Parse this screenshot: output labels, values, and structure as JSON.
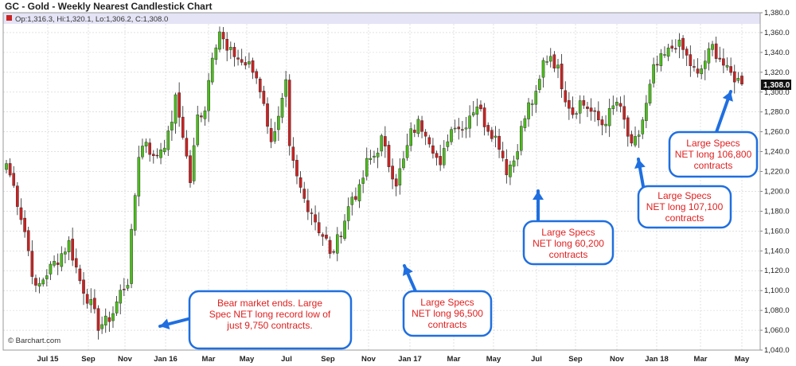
{
  "colors": {
    "up": "#4cbc1c",
    "down": "#cc2222",
    "note_border": "#1f6fe0",
    "note_text": "#e02020",
    "arrow": "#1f6fe0",
    "grid": "#cfcfcf",
    "header_band": "#e4e4f6"
  },
  "header": {
    "title": "GC - Gold - Weekly Nearest Candlestick Chart",
    "ohlc_readout": "Op:1,316.3, Hi:1,320.1, Lo:1,306.2, C:1,308.0"
  },
  "source_label": "© Barchart.com",
  "last_price_label": "1,308.0",
  "chart_data": {
    "type": "candlestick",
    "title": "GC - Gold - Weekly Nearest Candlestick Chart",
    "ylim": [
      1040,
      1380
    ],
    "y_ticks": [
      "1,040.0",
      "1,060.0",
      "1,080.0",
      "1,100.0",
      "1,120.0",
      "1,140.0",
      "1,160.0",
      "1,180.0",
      "1,200.0",
      "1,220.0",
      "1,240.0",
      "1,260.0",
      "1,280.0",
      "1,300.0",
      "1,320.0",
      "1,340.0",
      "1,360.0",
      "1,380.0"
    ],
    "x_ticks": [
      "Jul 15",
      "Sep",
      "Nov",
      "Jan 16",
      "Mar",
      "May",
      "Jul",
      "Sep",
      "Nov",
      "Jan 17",
      "Mar",
      "May",
      "Jul",
      "Sep",
      "Nov",
      "Jan 18",
      "Mar",
      "May"
    ],
    "grid": true,
    "last_close": 1308.0,
    "anchors": [
      [
        0,
        1228
      ],
      [
        2,
        1205
      ],
      [
        5,
        1160
      ],
      [
        8,
        1100
      ],
      [
        11,
        1118
      ],
      [
        14,
        1132
      ],
      [
        17,
        1148
      ],
      [
        20,
        1110
      ],
      [
        23,
        1085
      ],
      [
        25,
        1065
      ],
      [
        27,
        1068
      ],
      [
        29,
        1078
      ],
      [
        31,
        1098
      ],
      [
        33,
        1110
      ],
      [
        34,
        1155
      ],
      [
        36,
        1238
      ],
      [
        38,
        1252
      ],
      [
        40,
        1232
      ],
      [
        42,
        1244
      ],
      [
        44,
        1255
      ],
      [
        46,
        1292
      ],
      [
        48,
        1258
      ],
      [
        50,
        1210
      ],
      [
        52,
        1275
      ],
      [
        54,
        1285
      ],
      [
        56,
        1340
      ],
      [
        58,
        1362
      ],
      [
        60,
        1340
      ],
      [
        62,
        1338
      ],
      [
        64,
        1330
      ],
      [
        66,
        1326
      ],
      [
        68,
        1315
      ],
      [
        70,
        1292
      ],
      [
        71,
        1262
      ],
      [
        72,
        1255
      ],
      [
        74,
        1272
      ],
      [
        76,
        1306
      ],
      [
        77,
        1240
      ],
      [
        79,
        1212
      ],
      [
        81,
        1192
      ],
      [
        83,
        1180
      ],
      [
        85,
        1162
      ],
      [
        87,
        1150
      ],
      [
        88,
        1134
      ],
      [
        90,
        1150
      ],
      [
        92,
        1172
      ],
      [
        94,
        1195
      ],
      [
        96,
        1200
      ],
      [
        98,
        1228
      ],
      [
        100,
        1236
      ],
      [
        102,
        1252
      ],
      [
        104,
        1228
      ],
      [
        106,
        1210
      ],
      [
        108,
        1230
      ],
      [
        110,
        1258
      ],
      [
        112,
        1268
      ],
      [
        114,
        1262
      ],
      [
        116,
        1245
      ],
      [
        118,
        1222
      ],
      [
        120,
        1255
      ],
      [
        122,
        1270
      ],
      [
        124,
        1262
      ],
      [
        126,
        1278
      ],
      [
        128,
        1288
      ],
      [
        130,
        1270
      ],
      [
        132,
        1260
      ],
      [
        134,
        1248
      ],
      [
        136,
        1222
      ],
      [
        138,
        1232
      ],
      [
        140,
        1262
      ],
      [
        142,
        1286
      ],
      [
        144,
        1295
      ],
      [
        145,
        1310
      ],
      [
        146,
        1330
      ],
      [
        148,
        1338
      ],
      [
        150,
        1322
      ],
      [
        152,
        1296
      ],
      [
        154,
        1280
      ],
      [
        156,
        1290
      ],
      [
        158,
        1285
      ],
      [
        160,
        1275
      ],
      [
        162,
        1268
      ],
      [
        164,
        1278
      ],
      [
        166,
        1290
      ],
      [
        168,
        1270
      ],
      [
        170,
        1242
      ],
      [
        172,
        1258
      ],
      [
        174,
        1286
      ],
      [
        176,
        1322
      ],
      [
        178,
        1332
      ],
      [
        180,
        1340
      ],
      [
        182,
        1350
      ],
      [
        184,
        1342
      ],
      [
        186,
        1328
      ],
      [
        188,
        1315
      ],
      [
        190,
        1332
      ],
      [
        192,
        1345
      ],
      [
        194,
        1335
      ],
      [
        196,
        1320
      ],
      [
        198,
        1315
      ],
      [
        200,
        1308
      ]
    ]
  },
  "annotations": [
    {
      "text": [
        "Bear market ends. Large",
        "Spec NET long record low of",
        "just 9,750 contracts."
      ]
    },
    {
      "text": [
        "Large Specs",
        "NET long 96,500",
        "contracts"
      ]
    },
    {
      "text": [
        "Large Specs",
        "NET long 60,200",
        "contracts"
      ]
    },
    {
      "text": [
        "Large Specs",
        "NET long 107,100",
        "contracts"
      ]
    },
    {
      "text": [
        "Large Specs",
        "NET long 106,800",
        "contracts"
      ]
    }
  ]
}
